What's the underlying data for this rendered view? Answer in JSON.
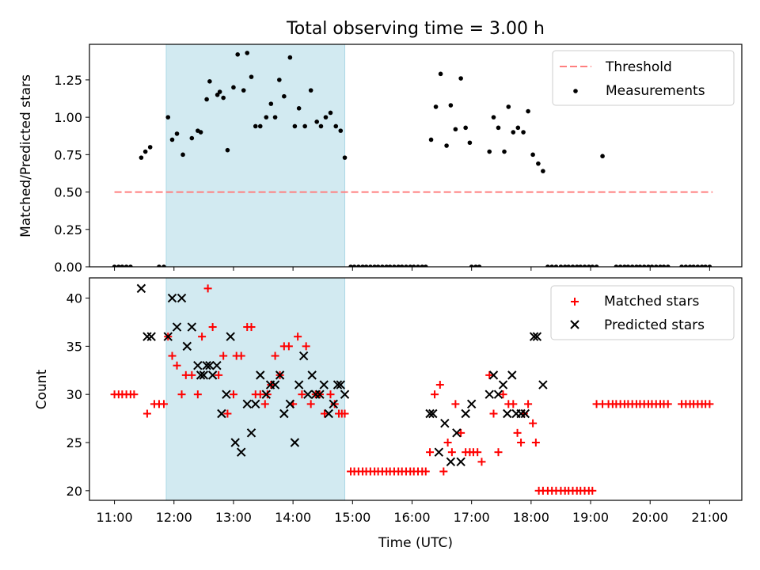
{
  "title": "Total observing time = 3.00 h",
  "chart_data": [
    {
      "type": "scatter",
      "ylabel": "Matched/Predicted stars",
      "xlim": [
        10.58,
        21.54
      ],
      "ylim": [
        0,
        1.4878
      ],
      "yticks": [
        0.0,
        0.25,
        0.5,
        0.75,
        1.0,
        1.25
      ],
      "shaded_span": [
        11.87,
        14.87
      ],
      "shade_color": "#add8e6",
      "legend_position": "top-right",
      "threshold": {
        "name": "Threshold",
        "value": 0.5,
        "x_range": [
          11.0,
          21.05
        ],
        "color": "#ff7f7f",
        "style": "dashed"
      },
      "series": [
        {
          "name": "Measurements",
          "marker": "dot",
          "color": "#000000",
          "x": [
            11.0,
            11.07,
            11.13,
            11.2,
            11.27,
            11.45,
            11.52,
            11.6,
            11.75,
            11.83,
            11.9,
            11.97,
            12.05,
            12.15,
            12.3,
            12.4,
            12.45,
            12.55,
            12.6,
            12.73,
            12.77,
            12.83,
            12.9,
            13.0,
            13.07,
            13.17,
            13.23,
            13.3,
            13.37,
            13.45,
            13.55,
            13.63,
            13.7,
            13.77,
            13.85,
            13.95,
            14.03,
            14.1,
            14.2,
            14.3,
            14.4,
            14.47,
            14.55,
            14.63,
            14.72,
            14.8,
            14.87,
            14.97,
            15.03,
            15.1,
            15.17,
            15.23,
            15.3,
            15.37,
            15.43,
            15.5,
            15.57,
            15.63,
            15.7,
            15.77,
            15.83,
            15.9,
            15.97,
            16.03,
            16.1,
            16.17,
            16.23,
            16.32,
            16.4,
            16.48,
            16.58,
            16.65,
            16.73,
            16.82,
            16.9,
            16.97,
            17.0,
            17.07,
            17.13,
            17.3,
            17.37,
            17.45,
            17.55,
            17.62,
            17.7,
            17.78,
            17.87,
            17.95,
            18.03,
            18.12,
            18.2,
            18.28,
            18.35,
            18.42,
            18.5,
            18.57,
            18.63,
            18.7,
            18.77,
            18.83,
            18.9,
            18.97,
            19.03,
            19.1,
            19.2,
            19.43,
            19.5,
            19.57,
            19.63,
            19.7,
            19.77,
            19.83,
            19.9,
            19.97,
            20.03,
            20.1,
            20.17,
            20.23,
            20.3,
            20.53,
            20.6,
            20.67,
            20.73,
            20.8,
            20.87,
            20.93,
            21.0
          ],
          "y": [
            0,
            0,
            0,
            0,
            0,
            0.73,
            0.77,
            0.8,
            0,
            0,
            1.0,
            0.85,
            0.89,
            0.75,
            0.86,
            0.91,
            0.9,
            1.12,
            1.24,
            1.15,
            1.17,
            1.13,
            0.78,
            1.2,
            1.42,
            1.18,
            1.43,
            1.27,
            0.94,
            0.94,
            1.0,
            1.09,
            1.0,
            1.25,
            1.14,
            1.4,
            0.94,
            1.06,
            0.94,
            1.18,
            0.97,
            0.94,
            1.0,
            1.03,
            0.94,
            0.91,
            0.73,
            0,
            0,
            0,
            0,
            0,
            0,
            0,
            0,
            0,
            0,
            0,
            0,
            0,
            0,
            0,
            0,
            0,
            0,
            0,
            0,
            0.85,
            1.07,
            1.29,
            0.81,
            1.08,
            0.92,
            1.26,
            0.93,
            0.83,
            0,
            0,
            0,
            0.77,
            1.0,
            0.93,
            0.77,
            1.07,
            0.9,
            0.93,
            0.9,
            1.04,
            0.75,
            0.69,
            0.64,
            0,
            0,
            0,
            0,
            0,
            0,
            0,
            0,
            0,
            0,
            0,
            0,
            0,
            0.74,
            0,
            0,
            0,
            0,
            0,
            0,
            0,
            0,
            0,
            0,
            0,
            0,
            0,
            0,
            0,
            0,
            0,
            0,
            0,
            0,
            0,
            0
          ]
        }
      ]
    },
    {
      "type": "scatter",
      "xlabel": "Time (UTC)",
      "ylabel": "Count",
      "xlim": [
        10.58,
        21.54
      ],
      "ylim": [
        19.0,
        42.1
      ],
      "yticks": [
        20,
        25,
        30,
        35,
        40
      ],
      "xtick_values": [
        11,
        12,
        13,
        14,
        15,
        16,
        17,
        18,
        19,
        20,
        21
      ],
      "xtick_labels": [
        "11:00",
        "12:00",
        "13:00",
        "14:00",
        "15:00",
        "16:00",
        "17:00",
        "18:00",
        "19:00",
        "20:00",
        "21:00"
      ],
      "shaded_span": [
        11.87,
        14.87
      ],
      "shade_color": "#add8e6",
      "legend_position": "top-right",
      "series": [
        {
          "name": "Matched stars",
          "marker": "plus",
          "color": "#ff0000",
          "x": [
            11.0,
            11.07,
            11.13,
            11.2,
            11.27,
            11.33,
            11.55,
            11.67,
            11.75,
            11.83,
            11.9,
            11.97,
            12.05,
            12.13,
            12.2,
            12.3,
            12.4,
            12.47,
            12.57,
            12.65,
            12.75,
            12.83,
            12.9,
            13.0,
            13.05,
            13.13,
            13.23,
            13.3,
            13.37,
            13.45,
            13.53,
            13.57,
            13.63,
            13.7,
            13.78,
            13.85,
            13.93,
            14.0,
            14.08,
            14.15,
            14.22,
            14.3,
            14.38,
            14.45,
            14.53,
            14.63,
            14.7,
            14.77,
            14.82,
            14.87,
            14.97,
            15.03,
            15.1,
            15.17,
            15.23,
            15.3,
            15.37,
            15.43,
            15.5,
            15.57,
            15.63,
            15.7,
            15.77,
            15.83,
            15.9,
            15.97,
            16.03,
            16.1,
            16.17,
            16.23,
            16.3,
            16.38,
            16.47,
            16.53,
            16.6,
            16.67,
            16.73,
            16.82,
            16.9,
            16.97,
            17.03,
            17.1,
            17.17,
            17.3,
            17.37,
            17.45,
            17.53,
            17.62,
            17.7,
            17.77,
            17.83,
            17.88,
            17.95,
            18.03,
            18.08,
            18.13,
            18.2,
            18.28,
            18.35,
            18.42,
            18.5,
            18.57,
            18.63,
            18.7,
            18.77,
            18.83,
            18.9,
            18.97,
            19.03,
            19.1,
            19.2,
            19.3,
            19.37,
            19.43,
            19.5,
            19.57,
            19.63,
            19.7,
            19.77,
            19.83,
            19.9,
            19.97,
            20.03,
            20.1,
            20.17,
            20.23,
            20.3,
            20.53,
            20.6,
            20.67,
            20.73,
            20.8,
            20.87,
            20.93,
            21.0
          ],
          "y": [
            30,
            30,
            30,
            30,
            30,
            30,
            28,
            29,
            29,
            29,
            36,
            34,
            33,
            30,
            32,
            32,
            30,
            36,
            41,
            37,
            32,
            34,
            28,
            30,
            34,
            34,
            37,
            37,
            30,
            30,
            29,
            30,
            31,
            34,
            32,
            35,
            35,
            29,
            36,
            30,
            35,
            29,
            30,
            30,
            28,
            30,
            29,
            28,
            28,
            28,
            22,
            22,
            22,
            22,
            22,
            22,
            22,
            22,
            22,
            22,
            22,
            22,
            22,
            22,
            22,
            22,
            22,
            22,
            22,
            22,
            24,
            30,
            31,
            22,
            25,
            24,
            29,
            26,
            24,
            24,
            24,
            24,
            23,
            32,
            28,
            24,
            30,
            29,
            29,
            26,
            25,
            28,
            29,
            27,
            25,
            20,
            20,
            20,
            20,
            20,
            20,
            20,
            20,
            20,
            20,
            20,
            20,
            20,
            20,
            29,
            29,
            29,
            29,
            29,
            29,
            29,
            29,
            29,
            29,
            29,
            29,
            29,
            29,
            29,
            29,
            29,
            29,
            29,
            29,
            29,
            29,
            29,
            29,
            29,
            29
          ]
        },
        {
          "name": "Predicted stars",
          "marker": "x",
          "color": "#000000",
          "x": [
            11.45,
            11.55,
            11.62,
            11.9,
            11.97,
            12.05,
            12.13,
            12.22,
            12.3,
            12.4,
            12.45,
            12.5,
            12.55,
            12.6,
            12.65,
            12.72,
            12.8,
            12.88,
            12.95,
            13.03,
            13.13,
            13.23,
            13.3,
            13.37,
            13.45,
            13.55,
            13.62,
            13.7,
            13.78,
            13.85,
            13.95,
            14.03,
            14.1,
            14.18,
            14.25,
            14.32,
            14.38,
            14.45,
            14.52,
            14.6,
            14.68,
            14.75,
            14.8,
            14.87,
            16.3,
            16.35,
            16.45,
            16.55,
            16.65,
            16.75,
            16.82,
            16.9,
            17.0,
            17.3,
            17.37,
            17.45,
            17.53,
            17.6,
            17.68,
            17.75,
            17.83,
            17.9,
            18.05,
            18.1,
            18.2
          ],
          "y": [
            41,
            36,
            36,
            36,
            40,
            37,
            40,
            35,
            37,
            33,
            32,
            32,
            33,
            33,
            32,
            33,
            28,
            30,
            36,
            25,
            24,
            29,
            26,
            29,
            32,
            30,
            31,
            31,
            32,
            28,
            29,
            25,
            31,
            34,
            30,
            32,
            30,
            30,
            31,
            28,
            29,
            31,
            31,
            30,
            28,
            28,
            24,
            27,
            23,
            26,
            23,
            28,
            29,
            30,
            32,
            30,
            31,
            28,
            32,
            28,
            28,
            28,
            36,
            36,
            31
          ]
        }
      ]
    }
  ]
}
